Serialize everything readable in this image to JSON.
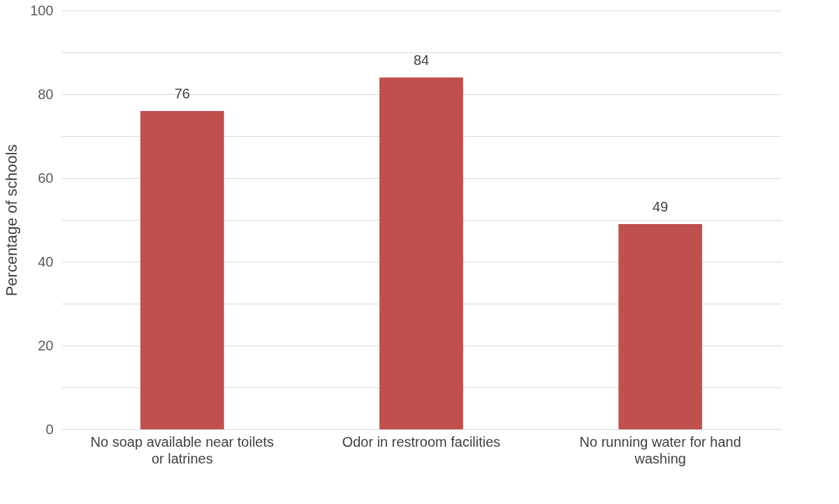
{
  "chart_data": {
    "type": "bar",
    "ylabel": "Percentage of schools",
    "categories": [
      "No soap available near toilets or latrines",
      "Odor in restroom facilities",
      "No running water for hand washing"
    ],
    "values": [
      76,
      84,
      49
    ],
    "color": "#c0504d",
    "ylim": [
      0,
      100
    ],
    "yticks": [
      0,
      {
        "value": 10,
        "label": null
      },
      20,
      {
        "value": 30,
        "label": null
      },
      40,
      {
        "value": 50,
        "label": null
      },
      60,
      {
        "value": 70,
        "label": null
      },
      80,
      {
        "value": 90,
        "label": null
      },
      100
    ],
    "grid": "y",
    "data_labels": true
  }
}
